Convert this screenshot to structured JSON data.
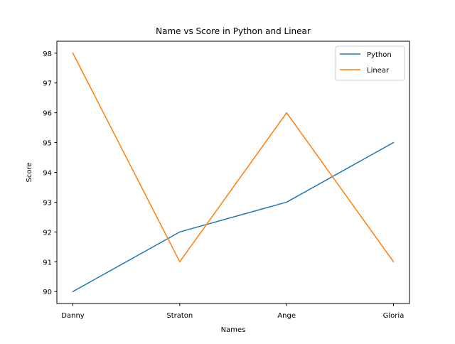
{
  "chart_data": {
    "type": "line",
    "title": "Name vs Score in Python and Linear",
    "xlabel": "Names",
    "ylabel": "Score",
    "categories": [
      "Danny",
      "Straton",
      "Ange",
      "Gloria"
    ],
    "series": [
      {
        "name": "Python",
        "values": [
          90,
          92,
          93,
          95
        ],
        "color": "#1f77b4"
      },
      {
        "name": "Linear",
        "values": [
          98,
          91,
          96,
          91
        ],
        "color": "#ff7f0e"
      }
    ],
    "ylim": [
      89.6,
      98.4
    ],
    "yticks": [
      90,
      91,
      92,
      93,
      94,
      95,
      96,
      97,
      98
    ],
    "grid": false,
    "legend_position": "top-right"
  }
}
